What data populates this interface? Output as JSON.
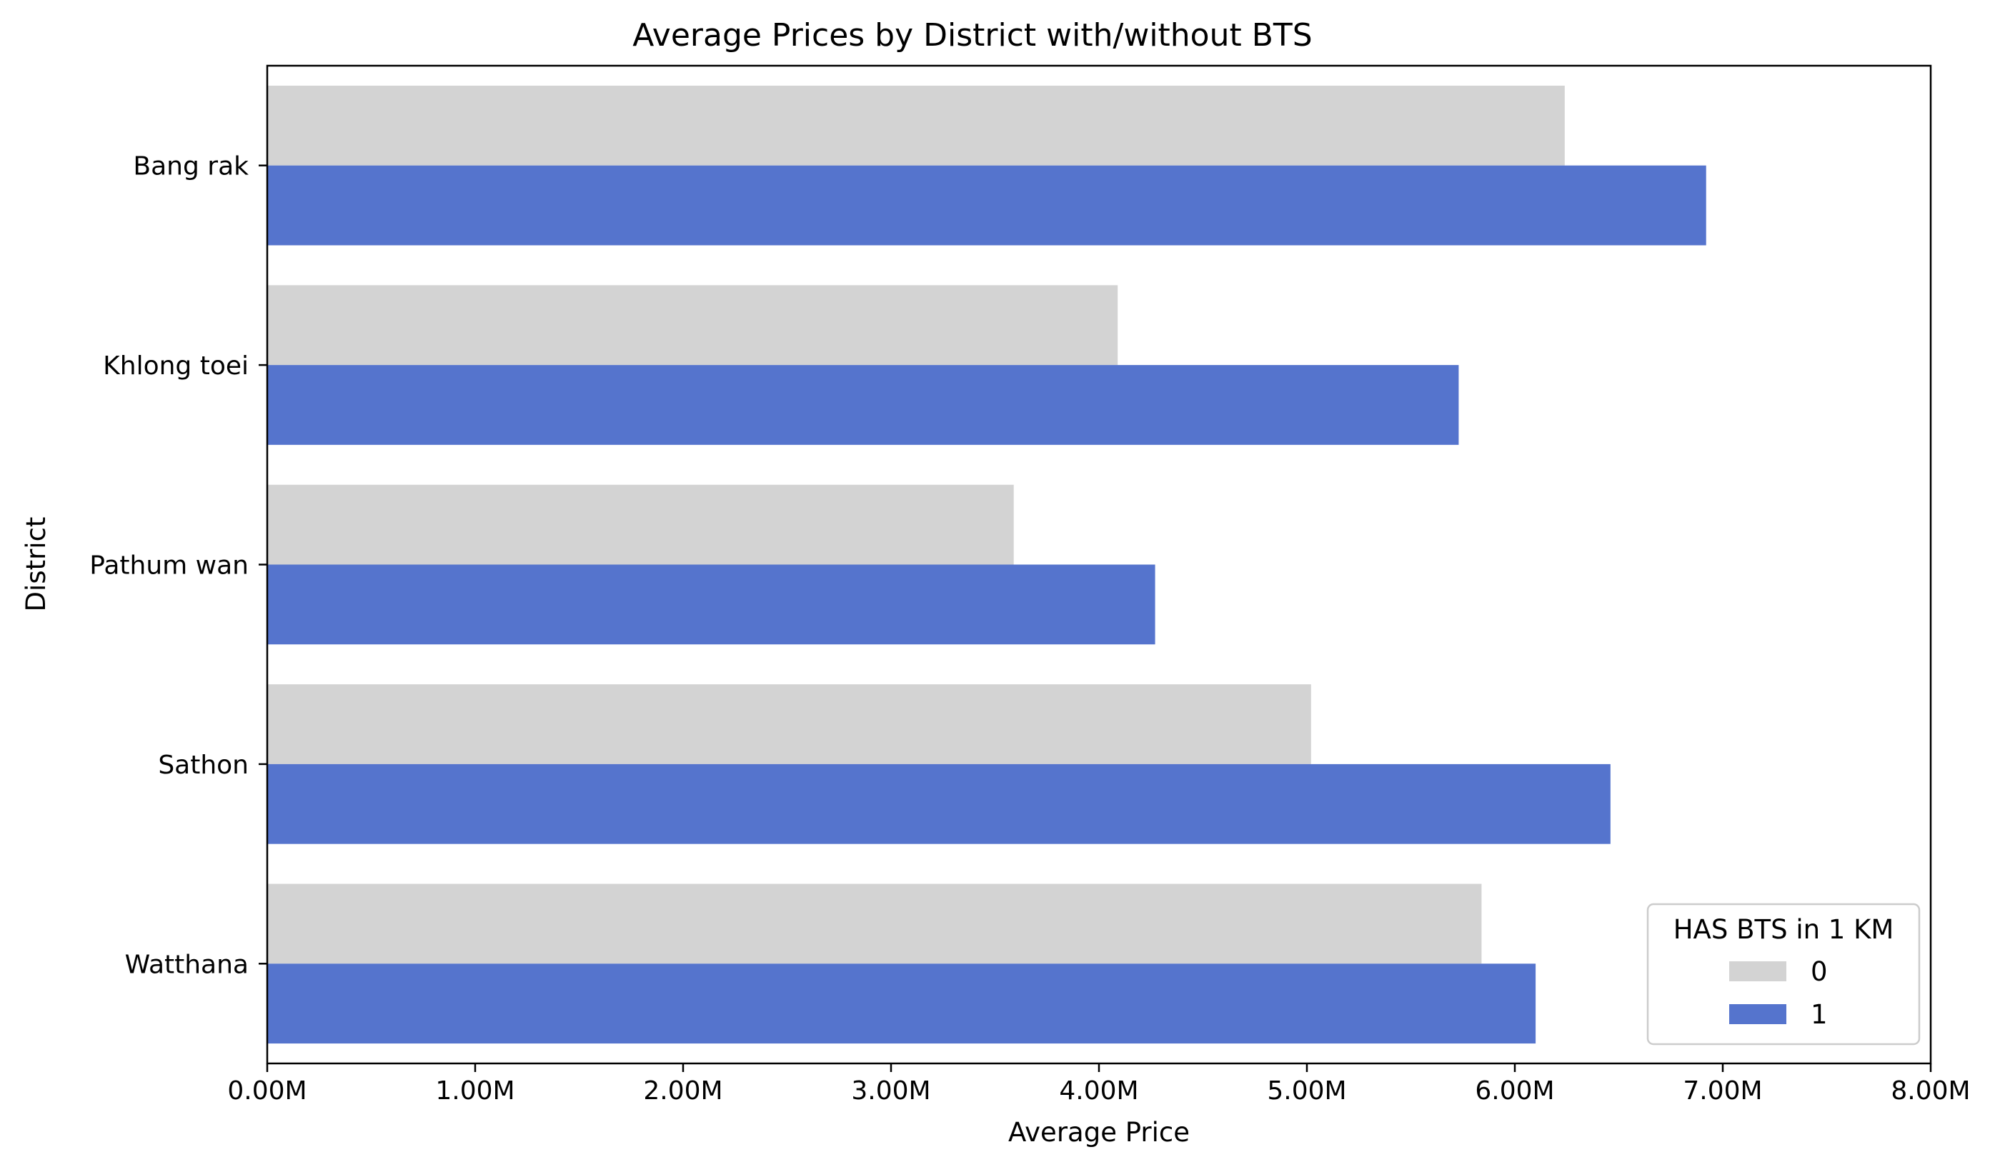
{
  "chart_data": {
    "type": "bar",
    "orientation": "horizontal",
    "title": "Average Prices by District with/without BTS",
    "xlabel": "Average Price",
    "ylabel": "District",
    "categories": [
      "Bang rak",
      "Khlong toei",
      "Pathum wan",
      "Sathon",
      "Watthana"
    ],
    "series": [
      {
        "name": "0",
        "color": "#d3d3d3",
        "values": [
          6240000,
          4090000,
          3590000,
          5020000,
          5840000
        ]
      },
      {
        "name": "1",
        "color": "#5574cd",
        "values": [
          6920000,
          5730000,
          4270000,
          6460000,
          6100000
        ]
      }
    ],
    "xlim": [
      0,
      8000000
    ],
    "xticks": [
      0,
      1000000,
      2000000,
      3000000,
      4000000,
      5000000,
      6000000,
      7000000,
      8000000
    ],
    "xtick_labels": [
      "0.00M",
      "1.00M",
      "2.00M",
      "3.00M",
      "4.00M",
      "5.00M",
      "6.00M",
      "7.00M",
      "8.00M"
    ],
    "grid": false,
    "legend": {
      "title": "HAS BTS in 1 KM",
      "placement": "lower-right"
    }
  }
}
